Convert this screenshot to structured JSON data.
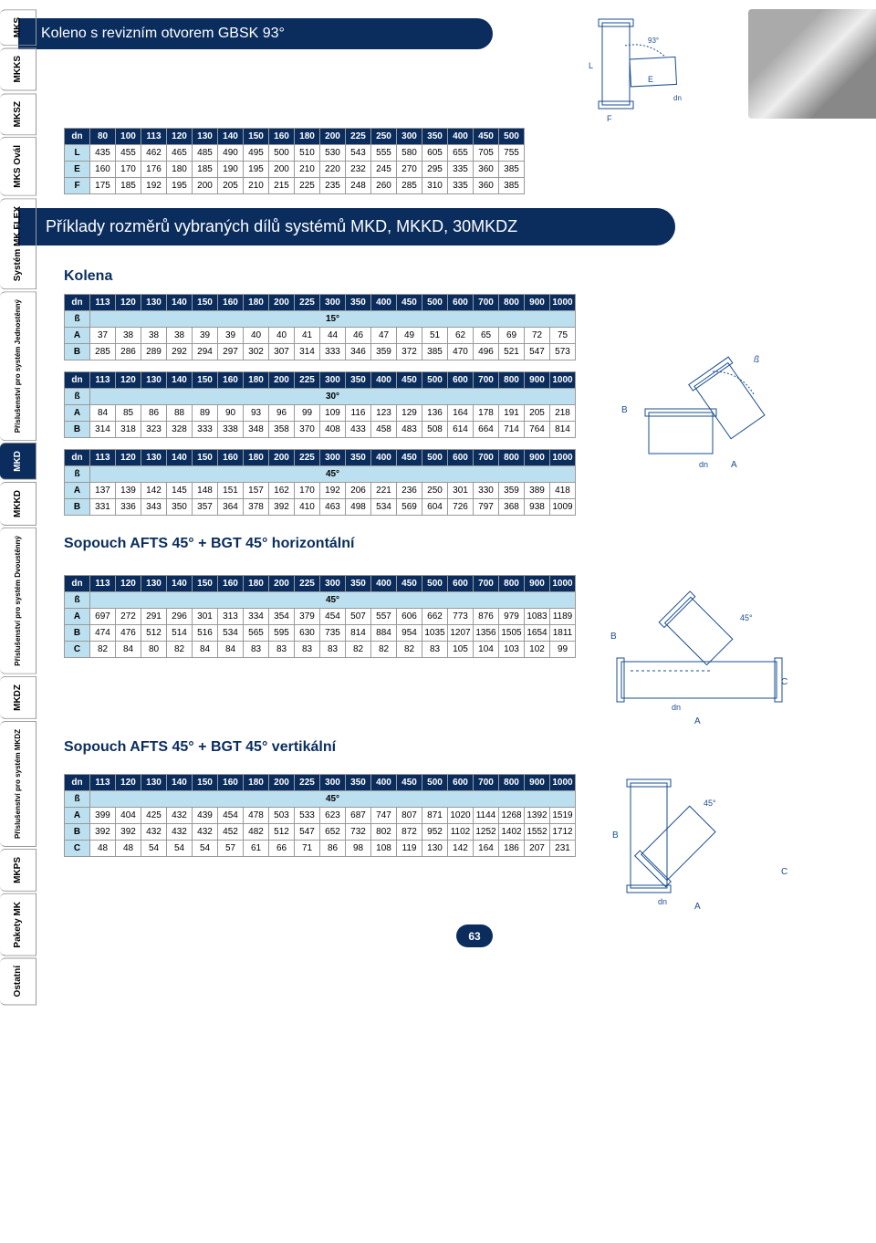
{
  "page_number": "63",
  "colors": {
    "header_bg": "#0a2d5e",
    "header_text": "#ffffff",
    "row_header_bg": "#bde0f0",
    "border": "#999999"
  },
  "side_tabs": [
    {
      "label": "MKS",
      "active": false
    },
    {
      "label": "MKKS",
      "active": false
    },
    {
      "label": "MKSZ",
      "active": false
    },
    {
      "label": "MKS Ovál",
      "active": false
    },
    {
      "label": "Systém MK FLEX",
      "active": false
    },
    {
      "label": "Příslušenství pro systém Jednostěnný",
      "active": false,
      "sub": true
    },
    {
      "label": "MKD",
      "active": true
    },
    {
      "label": "MKKD",
      "active": false
    },
    {
      "label": "Příslušenství pro systém Dvoustěnný",
      "active": false,
      "sub": true
    },
    {
      "label": "MKDZ",
      "active": false
    },
    {
      "label": "Příslušenství pro systém MKDZ",
      "active": false,
      "sub": true
    },
    {
      "label": "MKPS",
      "active": false
    },
    {
      "label": "Pakety MK",
      "active": false
    },
    {
      "label": "Ostatní",
      "active": false
    }
  ],
  "section1": {
    "title": "Koleno s revizním otvorem GBSK 93°",
    "table": {
      "header": [
        "dn",
        "80",
        "100",
        "113",
        "120",
        "130",
        "140",
        "150",
        "160",
        "180",
        "200",
        "225",
        "250",
        "300",
        "350",
        "400",
        "450",
        "500"
      ],
      "rows": [
        [
          "L",
          "435",
          "455",
          "462",
          "465",
          "485",
          "490",
          "495",
          "500",
          "510",
          "530",
          "543",
          "555",
          "580",
          "605",
          "655",
          "705",
          "755"
        ],
        [
          "E",
          "160",
          "170",
          "176",
          "180",
          "185",
          "190",
          "195",
          "200",
          "210",
          "220",
          "232",
          "245",
          "270",
          "295",
          "335",
          "360",
          "385"
        ],
        [
          "F",
          "175",
          "185",
          "192",
          "195",
          "200",
          "205",
          "210",
          "215",
          "225",
          "235",
          "248",
          "260",
          "285",
          "310",
          "335",
          "360",
          "385"
        ]
      ]
    }
  },
  "banner2": "Příklady rozměrů vybraných dílů systémů MKD, MKKD, 30MKDZ",
  "section2": {
    "title": "Kolena",
    "dn_header": [
      "dn",
      "113",
      "120",
      "130",
      "140",
      "150",
      "160",
      "180",
      "200",
      "225",
      "300",
      "350",
      "400",
      "450",
      "500",
      "600",
      "700",
      "800",
      "900",
      "1000"
    ],
    "tables": [
      {
        "angle": "15°",
        "rows": [
          [
            "A",
            "37",
            "38",
            "38",
            "38",
            "39",
            "39",
            "40",
            "40",
            "41",
            "44",
            "46",
            "47",
            "49",
            "51",
            "62",
            "65",
            "69",
            "72",
            "75"
          ],
          [
            "B",
            "285",
            "286",
            "289",
            "292",
            "294",
            "297",
            "302",
            "307",
            "314",
            "333",
            "346",
            "359",
            "372",
            "385",
            "470",
            "496",
            "521",
            "547",
            "573"
          ]
        ]
      },
      {
        "angle": "30°",
        "rows": [
          [
            "A",
            "84",
            "85",
            "86",
            "88",
            "89",
            "90",
            "93",
            "96",
            "99",
            "109",
            "116",
            "123",
            "129",
            "136",
            "164",
            "178",
            "191",
            "205",
            "218"
          ],
          [
            "B",
            "314",
            "318",
            "323",
            "328",
            "333",
            "338",
            "348",
            "358",
            "370",
            "408",
            "433",
            "458",
            "483",
            "508",
            "614",
            "664",
            "714",
            "764",
            "814"
          ]
        ]
      },
      {
        "angle": "45°",
        "rows": [
          [
            "A",
            "137",
            "139",
            "142",
            "145",
            "148",
            "151",
            "157",
            "162",
            "170",
            "192",
            "206",
            "221",
            "236",
            "250",
            "301",
            "330",
            "359",
            "389",
            "418"
          ],
          [
            "B",
            "331",
            "336",
            "343",
            "350",
            "357",
            "364",
            "378",
            "392",
            "410",
            "463",
            "498",
            "534",
            "569",
            "604",
            "726",
            "797",
            "368",
            "938",
            "1009"
          ]
        ]
      }
    ]
  },
  "section3": {
    "title": "Sopouch AFTS 45° + BGT 45° horizontální",
    "dn_header": [
      "dn",
      "113",
      "120",
      "130",
      "140",
      "150",
      "160",
      "180",
      "200",
      "225",
      "300",
      "350",
      "400",
      "450",
      "500",
      "600",
      "700",
      "800",
      "900",
      "1000"
    ],
    "angle": "45°",
    "rows": [
      [
        "A",
        "697",
        "272",
        "291",
        "296",
        "301",
        "313",
        "334",
        "354",
        "379",
        "454",
        "507",
        "557",
        "606",
        "662",
        "773",
        "876",
        "979",
        "1083",
        "1189"
      ],
      [
        "B",
        "474",
        "476",
        "512",
        "514",
        "516",
        "534",
        "565",
        "595",
        "630",
        "735",
        "814",
        "884",
        "954",
        "1035",
        "1207",
        "1356",
        "1505",
        "1654",
        "1811"
      ],
      [
        "C",
        "82",
        "84",
        "80",
        "82",
        "84",
        "84",
        "83",
        "83",
        "83",
        "83",
        "82",
        "82",
        "82",
        "83",
        "105",
        "104",
        "103",
        "102",
        "99"
      ]
    ]
  },
  "section4": {
    "title": "Sopouch AFTS 45° + BGT 45° vertikální",
    "dn_header": [
      "dn",
      "113",
      "120",
      "130",
      "140",
      "150",
      "160",
      "180",
      "200",
      "225",
      "300",
      "350",
      "400",
      "450",
      "500",
      "600",
      "700",
      "800",
      "900",
      "1000"
    ],
    "angle": "45°",
    "rows": [
      [
        "A",
        "399",
        "404",
        "425",
        "432",
        "439",
        "454",
        "478",
        "503",
        "533",
        "623",
        "687",
        "747",
        "807",
        "871",
        "1020",
        "1144",
        "1268",
        "1392",
        "1519"
      ],
      [
        "B",
        "392",
        "392",
        "432",
        "432",
        "432",
        "452",
        "482",
        "512",
        "547",
        "652",
        "732",
        "802",
        "872",
        "952",
        "1102",
        "1252",
        "1402",
        "1552",
        "1712"
      ],
      [
        "C",
        "48",
        "48",
        "54",
        "54",
        "54",
        "57",
        "61",
        "66",
        "71",
        "86",
        "98",
        "108",
        "119",
        "130",
        "142",
        "164",
        "186",
        "207",
        "231"
      ]
    ]
  },
  "angle_label": "ß",
  "diagram_labels": {
    "dn": "dn",
    "A": "A",
    "B": "B",
    "C": "C",
    "L": "L",
    "E": "E",
    "F": "F",
    "a93": "93°",
    "a45": "45°"
  }
}
